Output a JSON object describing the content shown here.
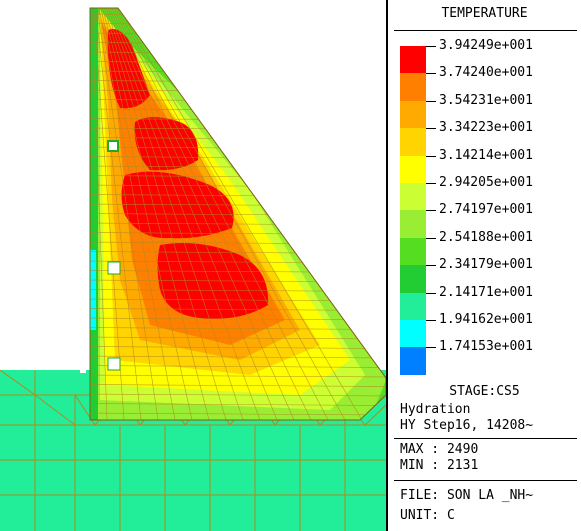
{
  "legend": {
    "title": "TEMPERATURE",
    "values": [
      "3.94249e+001",
      "3.74240e+001",
      "3.54231e+001",
      "3.34223e+001",
      "3.14214e+001",
      "2.94205e+001",
      "2.74197e+001",
      "2.54188e+001",
      "2.34179e+001",
      "2.14171e+001",
      "1.94162e+001",
      "1.74153e+001"
    ],
    "colors": [
      "#ff0000",
      "#ff8000",
      "#ffaa00",
      "#ffd400",
      "#ffff00",
      "#ccff33",
      "#99ee33",
      "#55dd22",
      "#22cc33",
      "#22ee99",
      "#00ffff",
      "#0080ff"
    ]
  },
  "info": {
    "stage": "STAGE:CS5",
    "analysis": "Hydration",
    "step": "HY Step16, 14208~",
    "max": "MAX : 2490",
    "min": "MIN : 2131",
    "file": "FILE: SON LA _NH~",
    "unit": "UNIT: C"
  }
}
